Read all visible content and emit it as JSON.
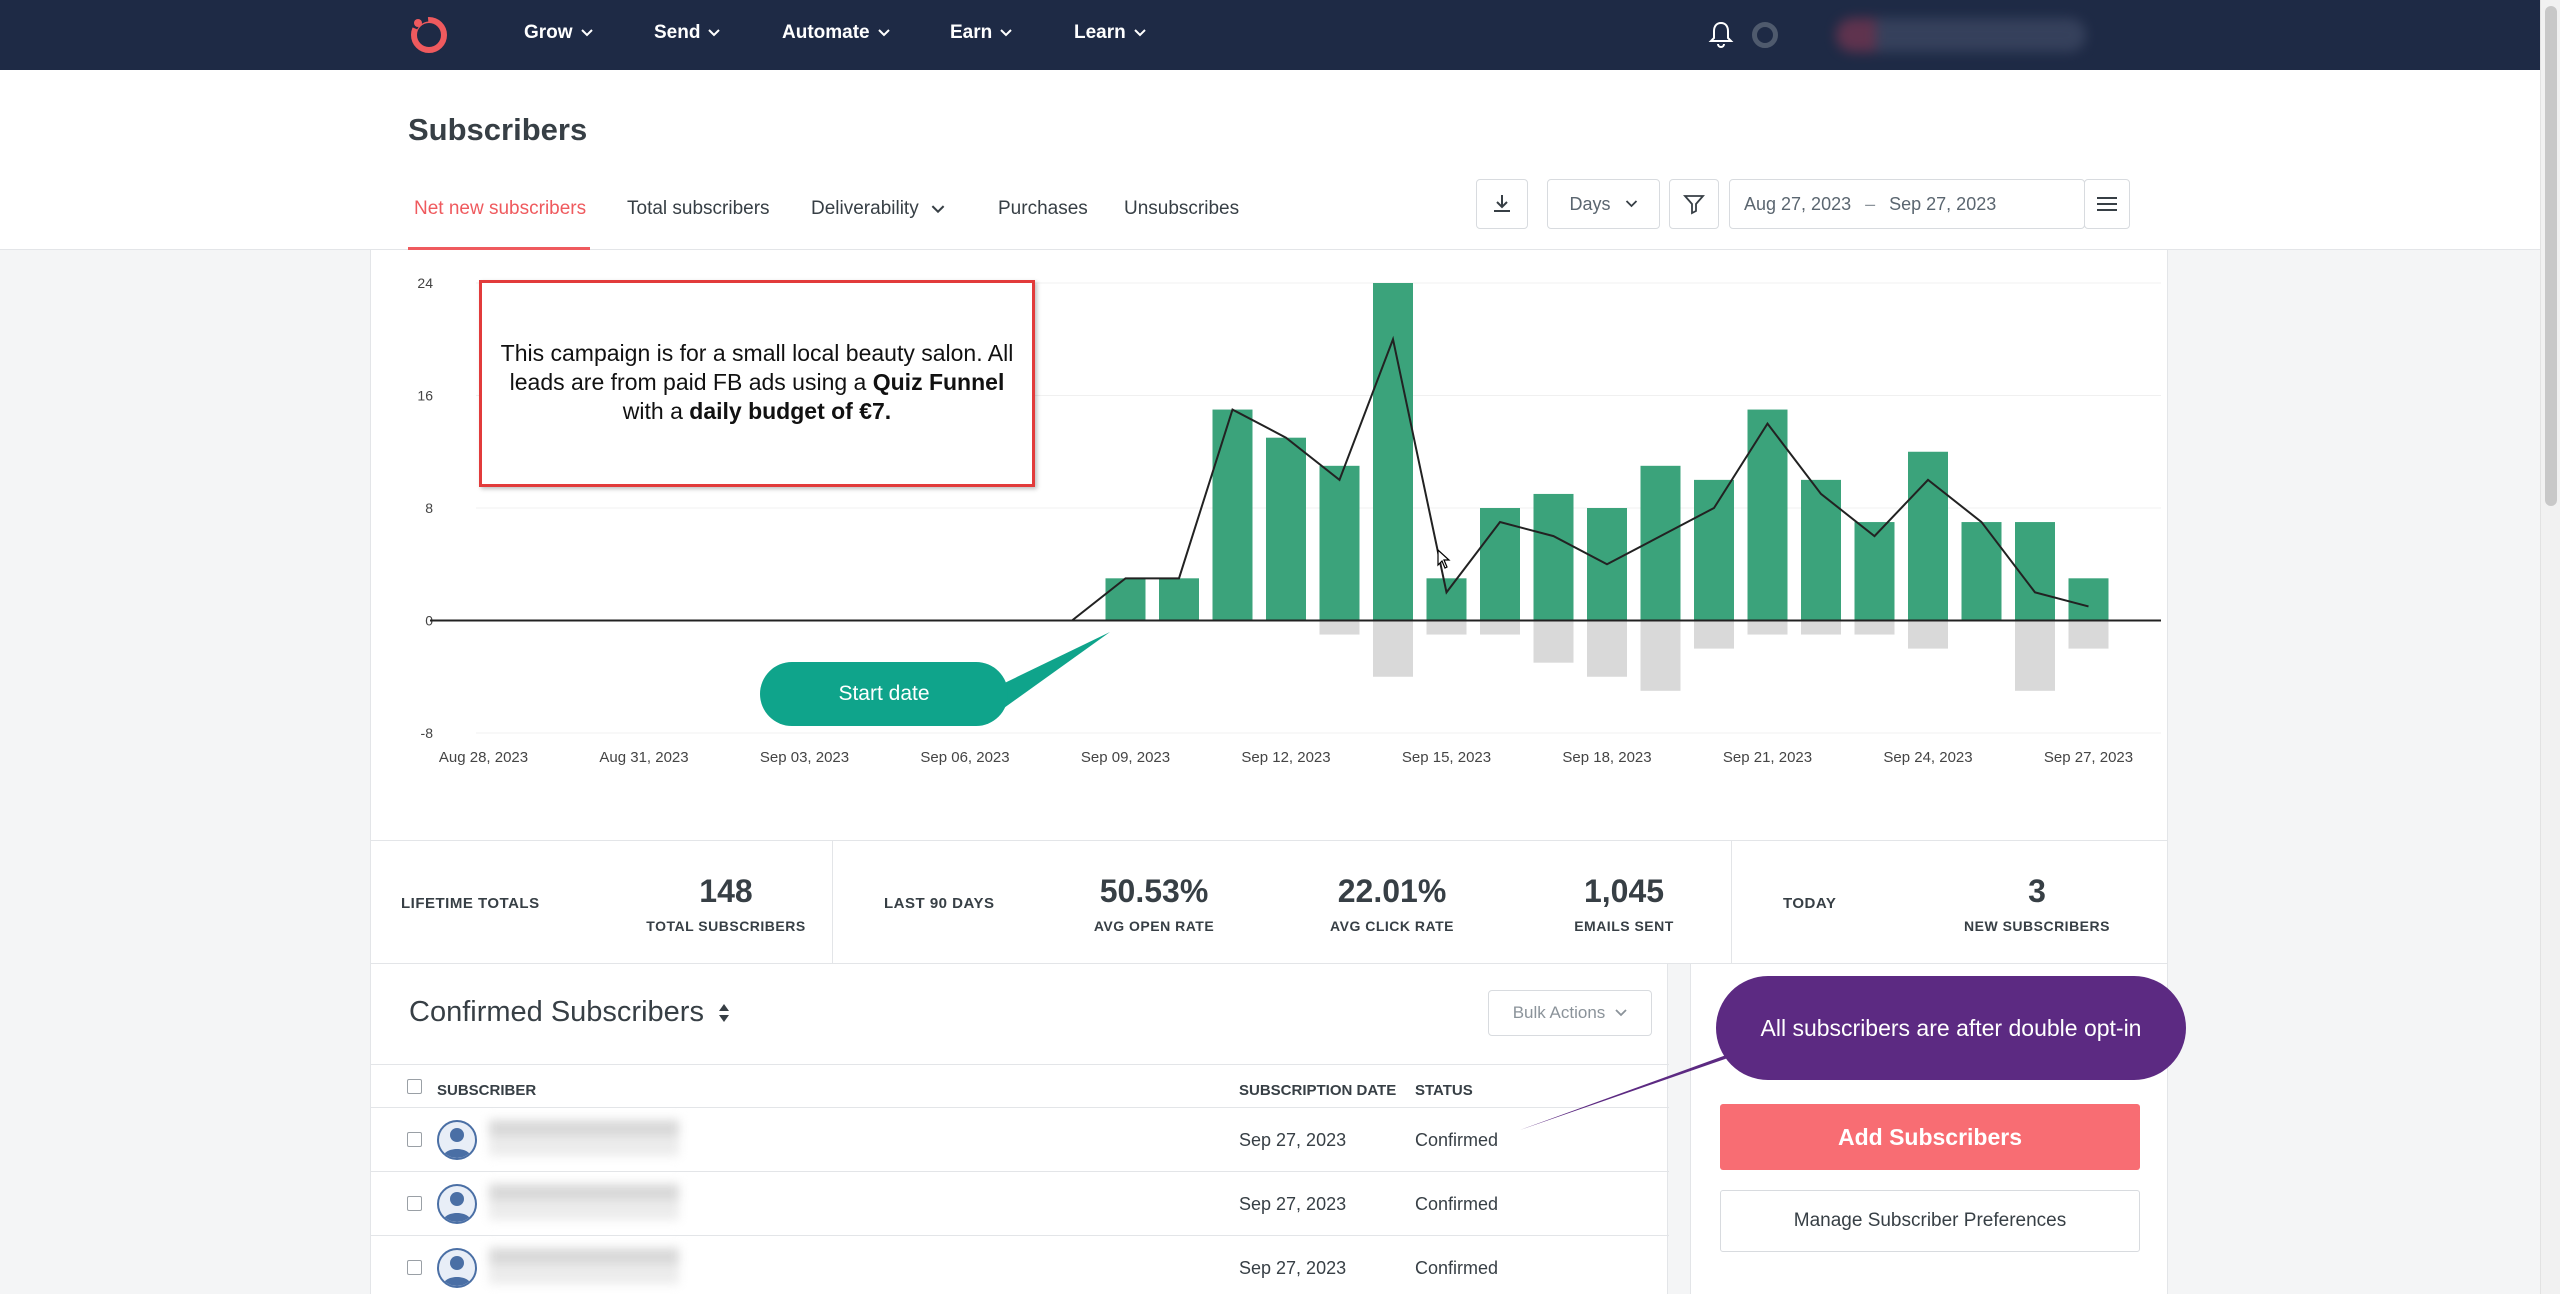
{
  "nav": {
    "items": [
      "Grow",
      "Send",
      "Automate",
      "Earn",
      "Learn"
    ]
  },
  "header": {
    "title": "Subscribers",
    "tabs": [
      {
        "label": "Net new subscribers",
        "active": true
      },
      {
        "label": "Total subscribers"
      },
      {
        "label": "Deliverability"
      },
      {
        "label": "Purchases"
      },
      {
        "label": "Unsubscribes"
      }
    ],
    "interval": "Days",
    "date_from": "Aug 27, 2023",
    "date_sep": "–",
    "date_to": "Sep 27, 2023"
  },
  "chart_data": {
    "type": "bar",
    "yticks": [
      24,
      16,
      8,
      0,
      -8
    ],
    "ylim": [
      -8,
      24
    ],
    "xticks": [
      "Aug 28, 2023",
      "Aug 31, 2023",
      "Sep 03, 2023",
      "Sep 06, 2023",
      "Sep 09, 2023",
      "Sep 12, 2023",
      "Sep 15, 2023",
      "Sep 18, 2023",
      "Sep 21, 2023",
      "Sep 24, 2023",
      "Sep 27, 2023"
    ],
    "x": [
      "Aug 27",
      "Aug 28",
      "Aug 29",
      "Aug 30",
      "Aug 31",
      "Sep 01",
      "Sep 02",
      "Sep 03",
      "Sep 04",
      "Sep 05",
      "Sep 06",
      "Sep 07",
      "Sep 08",
      "Sep 09",
      "Sep 10",
      "Sep 11",
      "Sep 12",
      "Sep 13",
      "Sep 14",
      "Sep 15",
      "Sep 16",
      "Sep 17",
      "Sep 18",
      "Sep 19",
      "Sep 20",
      "Sep 21",
      "Sep 22",
      "Sep 23",
      "Sep 24",
      "Sep 25",
      "Sep 26",
      "Sep 27"
    ],
    "series": [
      {
        "values": [
          0,
          0,
          0,
          0,
          0,
          0,
          0,
          0,
          0,
          0,
          0,
          0,
          0,
          3,
          3,
          15,
          13,
          11,
          24,
          3,
          8,
          9,
          8,
          11,
          10,
          15,
          10,
          7,
          12,
          7,
          7,
          3
        ],
        "color": "#3ba37b"
      },
      {
        "values": [
          0,
          0,
          0,
          0,
          0,
          0,
          0,
          0,
          0,
          0,
          0,
          0,
          0,
          0,
          0,
          0,
          0,
          -1,
          -4,
          -1,
          -1,
          -3,
          -4,
          -5,
          -2,
          -1,
          -1,
          -1,
          -2,
          0,
          -5,
          -2
        ],
        "color": "#d9d9d9"
      },
      {
        "type": "line",
        "values": [
          0,
          0,
          0,
          0,
          0,
          0,
          0,
          0,
          0,
          0,
          0,
          0,
          0,
          3,
          3,
          15,
          13,
          10,
          20,
          2,
          7,
          6,
          4,
          6,
          8,
          14,
          9,
          6,
          10,
          7,
          2,
          1
        ],
        "color": "#222222"
      }
    ]
  },
  "stats": {
    "lifetime_label": "LIFETIME TOTALS",
    "total_subscribers": "148",
    "total_subscribers_caption": "TOTAL SUBSCRIBERS",
    "last90_label": "LAST 90 DAYS",
    "open_rate": "50.53%",
    "open_rate_caption": "AVG OPEN RATE",
    "click_rate": "22.01%",
    "click_rate_caption": "AVG CLICK RATE",
    "emails_sent": "1,045",
    "emails_sent_caption": "EMAILS SENT",
    "today_label": "TODAY",
    "new_subscribers": "3",
    "new_subscribers_caption": "NEW SUBSCRIBERS"
  },
  "table": {
    "title": "Confirmed Subscribers",
    "bulk_actions": "Bulk Actions",
    "col_subscriber": "SUBSCRIBER",
    "col_date": "SUBSCRIPTION DATE",
    "col_status": "STATUS",
    "rows": [
      {
        "date": "Sep 27, 2023",
        "status": "Confirmed"
      },
      {
        "date": "Sep 27, 2023",
        "status": "Confirmed"
      },
      {
        "date": "Sep 27, 2023",
        "status": "Confirmed"
      }
    ]
  },
  "sidebar": {
    "add_button": "Add Subscribers",
    "manage_button": "Manage Subscriber Preferences"
  },
  "annotations": {
    "note_part1": "This campaign is for a small local beauty salon. All leads are from paid FB ads using a ",
    "note_bold1": "Quiz Funnel",
    "note_part2": " with a ",
    "note_bold2": "daily budget of €7.",
    "start_date": "Start date",
    "double_optin": "All subscribers are after double opt-in"
  }
}
